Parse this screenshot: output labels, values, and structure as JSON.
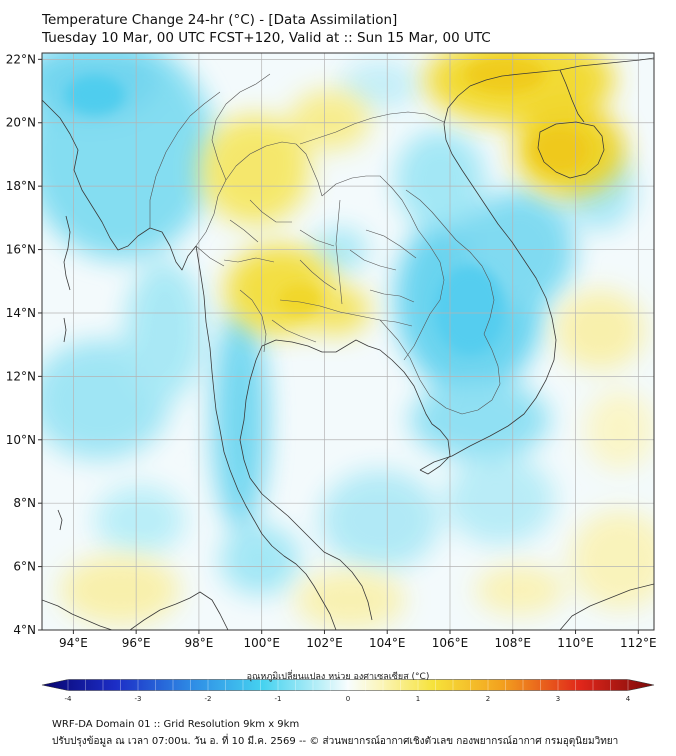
{
  "title_line1": "Temperature Change 24-hr (°C) - [Data Assimilation]",
  "title_line2": "Tuesday 10 Mar, 00 UTC FCST+120, Valid at :: Sun 15 Mar, 00 UTC",
  "map": {
    "lon_range": [
      93,
      112.5
    ],
    "lat_range": [
      4,
      22.2
    ],
    "lat_ticks": [
      "22°N",
      "20°N",
      "18°N",
      "16°N",
      "14°N",
      "12°N",
      "10°N",
      "8°N",
      "6°N",
      "4°N"
    ],
    "lon_ticks": [
      "94°E",
      "96°E",
      "98°E",
      "100°E",
      "102°E",
      "104°E",
      "106°E",
      "108°E",
      "110°E",
      "112°E"
    ],
    "grid": "on",
    "field_colors": {
      "cool": "#5fd0ee",
      "neutral": "#f4fbfd",
      "warm": "#f5e03a"
    }
  },
  "colorbar": {
    "title": "อุณหภูมิเปลี่ยนแปลง หน่วย องศาเซลเซียส (°C)",
    "range": [
      -4,
      4
    ],
    "tick_labels": [
      "-4",
      "-3",
      "-2",
      "-1",
      "0",
      "1",
      "2",
      "3",
      "4"
    ]
  },
  "footer_line1": "WRF-DA Domain 01 :: Grid Resolution 9km x 9km",
  "footer_line2": "ปรับปรุงข้อมูล ณ เวลา 07:00น. วัน อ. ที่ 10 มี.ค. 2569 -- © ส่วนพยากรณ์อากาศเชิงตัวเลข กองพยากรณ์อากาศ กรมอุตุนิยมวิทยา"
}
